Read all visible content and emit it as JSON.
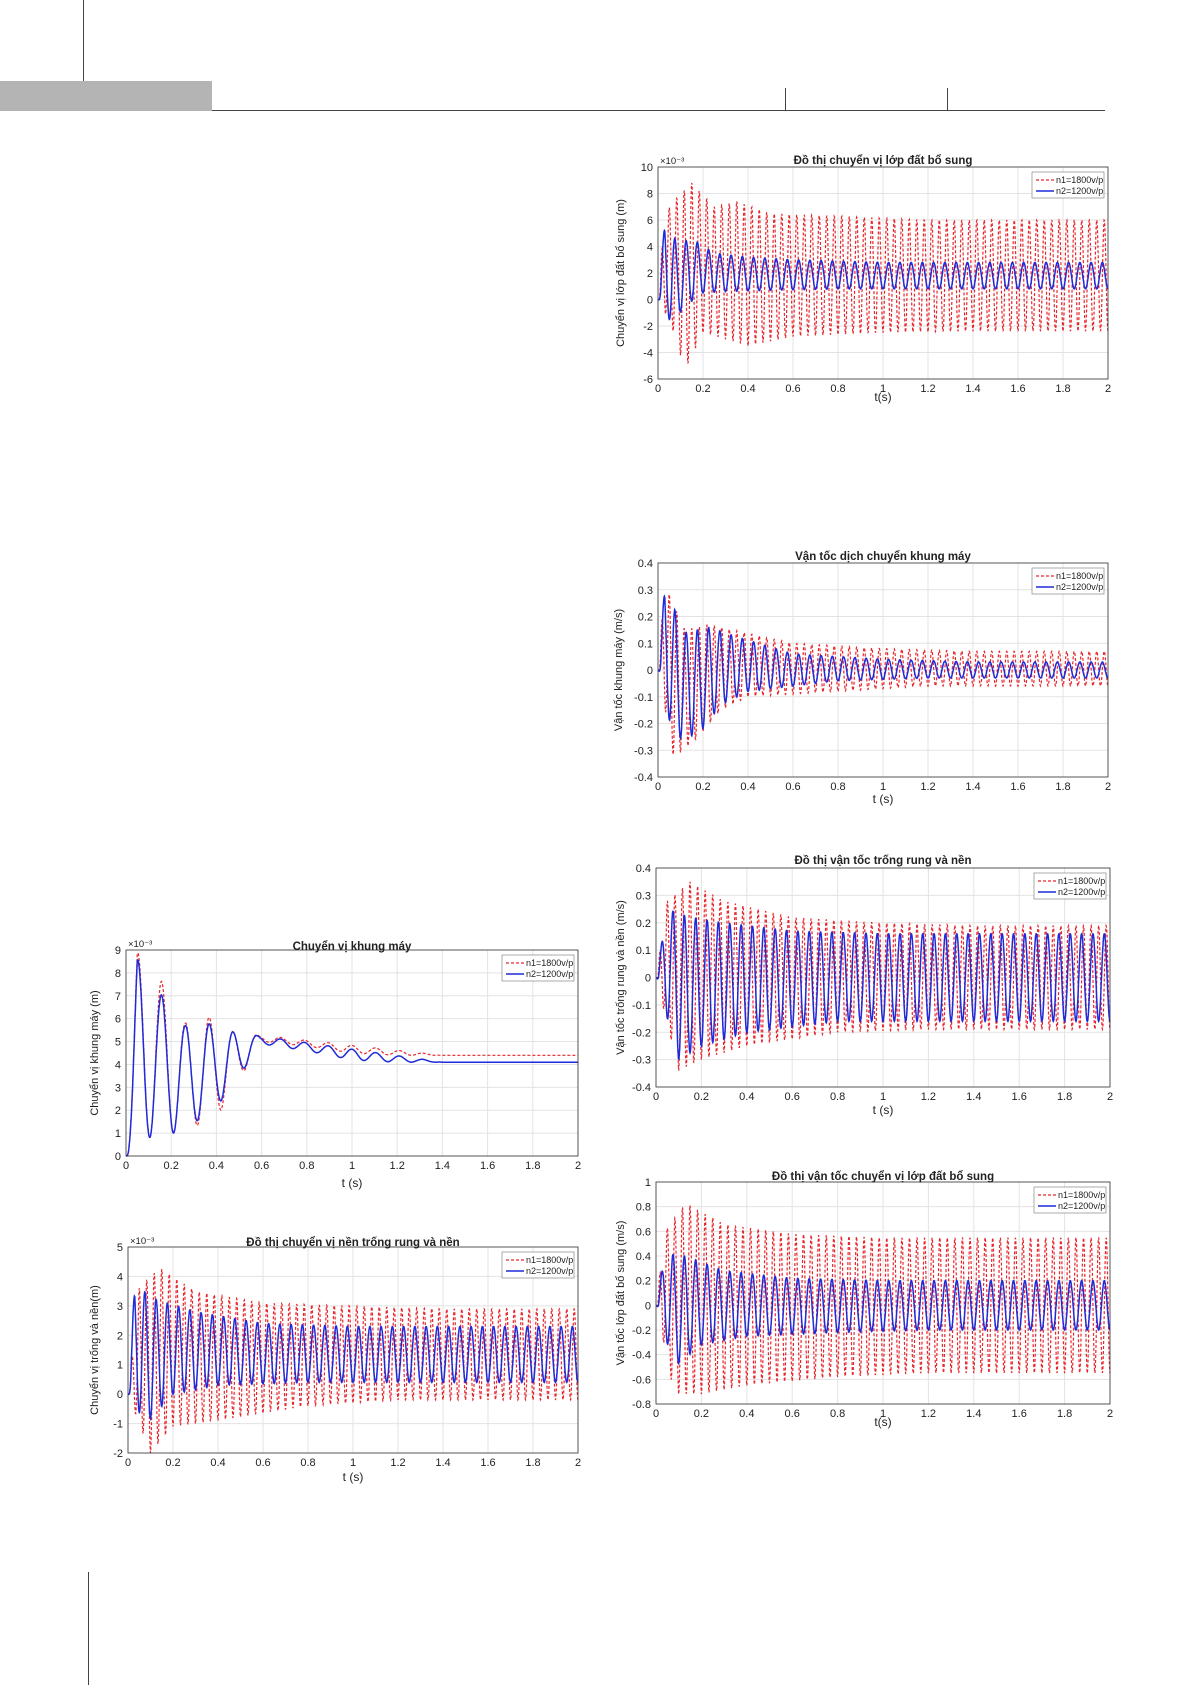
{
  "colors": {
    "n1": "#e8262d",
    "n2": "#1f2bd9",
    "grid": "#e3e3e3",
    "axis": "#333333"
  },
  "charts": {
    "c1": {
      "title": "Đồ thị chuyển vị lớp đất bổ sung",
      "xlabel": "t(s)",
      "ylabel": "Chuyển vị lớp đất bổ sung (m)",
      "exponent": "×10⁻³",
      "xticks": [
        "0",
        "0.2",
        "0.4",
        "0.6",
        "0.8",
        "1",
        "1.2",
        "1.4",
        "1.6",
        "1.8",
        "2"
      ],
      "yticks": [
        "10",
        "8",
        "6",
        "4",
        "2",
        "0",
        "-2",
        "-4",
        "-6"
      ],
      "legend": {
        "n1": "n1=1800v/p",
        "n2": "n2=1200v/p"
      }
    },
    "c2": {
      "title": "Vận tốc dịch chuyển khung máy",
      "xlabel": "t (s)",
      "ylabel": "Vận tốc khung máy (m/s)",
      "exponent": "",
      "xticks": [
        "0",
        "0.2",
        "0.4",
        "0.6",
        "0.8",
        "1",
        "1.2",
        "1.4",
        "1.6",
        "1.8",
        "2"
      ],
      "yticks": [
        "0.4",
        "0.3",
        "0.2",
        "0.1",
        "0",
        "-0.1",
        "-0.2",
        "-0.3",
        "-0.4"
      ],
      "legend": {
        "n1": "n1=1800v/p",
        "n2": "n2=1200v/p"
      }
    },
    "c3": {
      "title": "Đồ thị vận tốc trống rung và nền",
      "xlabel": "t (s)",
      "ylabel": "Vận tốc trống rung và nền (m/s)",
      "exponent": "",
      "xticks": [
        "0",
        "0.2",
        "0.4",
        "0.6",
        "0.8",
        "1",
        "1.2",
        "1.4",
        "1.6",
        "1.8",
        "2"
      ],
      "yticks": [
        "0.4",
        "0.3",
        "0.2",
        "0.1",
        "0",
        "-0.1",
        "-0.2",
        "-0.3",
        "-0.4"
      ],
      "legend": {
        "n1": "n1=1800v/p",
        "n2": "n2=1200v/p"
      }
    },
    "c4": {
      "title": "Chuyển vị khung máy",
      "xlabel": "t (s)",
      "ylabel": "Chuyển vị khung máy (m)",
      "exponent": "×10⁻³",
      "xticks": [
        "0",
        "0.2",
        "0.4",
        "0.6",
        "0.8",
        "1",
        "1.2",
        "1.4",
        "1.6",
        "1.8",
        "2"
      ],
      "yticks": [
        "9",
        "8",
        "7",
        "6",
        "5",
        "4",
        "3",
        "2",
        "1",
        "0"
      ],
      "legend": {
        "n1": "n1=1800v/p",
        "n2": "n2=1200v/p"
      }
    },
    "c5": {
      "title": "Đồ thị vận tốc chuyển vị lớp đất bổ sung",
      "xlabel": "t(s)",
      "ylabel": "Vận tốc lớp đất bổ sung (m/s)",
      "exponent": "",
      "xticks": [
        "0",
        "0.2",
        "0.4",
        "0.6",
        "0.8",
        "1",
        "1.2",
        "1.4",
        "1.6",
        "1.8",
        "2"
      ],
      "yticks": [
        "1",
        "0.8",
        "0.6",
        "0.4",
        "0.2",
        "0",
        "-0.2",
        "-0.4",
        "-0.6",
        "-0.8"
      ],
      "legend": {
        "n1": "n1=1800v/p",
        "n2": "n2=1200v/p"
      }
    },
    "c6": {
      "title": "Đồ thị chuyển vị nền trống rung và nền",
      "xlabel": "t (s)",
      "ylabel": "Chuyển vị trống và nền(m)",
      "exponent": "×10⁻³",
      "xticks": [
        "0",
        "0.2",
        "0.4",
        "0.6",
        "0.8",
        "1",
        "1.2",
        "1.4",
        "1.6",
        "1.8",
        "2"
      ],
      "yticks": [
        "5",
        "4",
        "3",
        "2",
        "1",
        "0",
        "-1",
        "-2"
      ],
      "legend": {
        "n1": "n1=1800v/p",
        "n2": "n2=1200v/p"
      }
    }
  },
  "chart_data": [
    {
      "id": "c1",
      "type": "line",
      "title": "Đồ thị chuyển vị lớp đất bổ sung",
      "xlabel": "t(s)",
      "ylabel": "Chuyển vị lớp đất bổ sung (m)",
      "y_multiplier": "10^-3",
      "xlim": [
        0,
        2
      ],
      "ylim": [
        -6,
        10
      ],
      "grid": true,
      "legend": "top-right",
      "series": [
        {
          "name": "n1=1800v/p",
          "style": "dashed",
          "x": [
            0,
            0.03,
            0.06,
            0.09,
            0.12,
            0.15,
            0.2,
            0.25,
            0.3,
            0.35,
            0.4,
            0.5,
            0.6,
            0.8,
            1,
            1.2,
            1.4,
            1.6,
            1.8,
            2
          ],
          "y": [
            0,
            6.5,
            -2,
            7.8,
            -5.3,
            8.8,
            -2.5,
            7,
            -3,
            7.4,
            -3.5,
            6.5,
            -2.8,
            6.3,
            -2.5,
            6,
            -2.4,
            6,
            -2.4,
            6
          ]
        },
        {
          "name": "n2=1200v/p",
          "style": "solid",
          "x": [
            0,
            0.03,
            0.06,
            0.09,
            0.12,
            0.15,
            0.2,
            0.25,
            0.3,
            0.4,
            0.5,
            0.6,
            0.8,
            1,
            1.2,
            1.4,
            1.6,
            1.8,
            2
          ],
          "y": [
            0,
            5.8,
            -1.8,
            4.2,
            -0.5,
            4.6,
            0.5,
            3.5,
            0.6,
            3.2,
            0.7,
            3,
            0.8,
            2.8,
            0.8,
            2.8,
            0.8,
            2.8,
            0.8
          ]
        }
      ]
    },
    {
      "id": "c2",
      "type": "line",
      "title": "Vận tốc dịch chuyển khung máy",
      "xlabel": "t (s)",
      "ylabel": "Vận tốc khung máy (m/s)",
      "xlim": [
        0,
        2
      ],
      "ylim": [
        -0.4,
        0.4
      ],
      "grid": true,
      "legend": "top-right",
      "series": [
        {
          "name": "n1=1800v/p",
          "style": "dashed",
          "x": [
            0,
            0.03,
            0.07,
            0.12,
            0.18,
            0.23,
            0.28,
            0.33,
            0.4,
            0.6,
            0.8,
            1,
            1.2,
            1.4,
            1.6,
            1.8,
            2
          ],
          "y": [
            0,
            0.32,
            -0.33,
            0.15,
            -0.25,
            0.17,
            -0.15,
            0.15,
            -0.1,
            0.1,
            -0.08,
            0.08,
            -0.06,
            0.07,
            -0.06,
            0.07,
            -0.06
          ]
        },
        {
          "name": "n2=1200v/p",
          "style": "solid",
          "x": [
            0,
            0.03,
            0.07,
            0.12,
            0.18,
            0.23,
            0.28,
            0.33,
            0.4,
            0.6,
            0.8,
            1,
            1.2,
            1.4,
            1.6,
            1.8,
            2
          ],
          "y": [
            0,
            0.31,
            -0.26,
            0.14,
            -0.24,
            0.16,
            -0.13,
            0.13,
            -0.08,
            0.06,
            -0.04,
            0.04,
            -0.03,
            0.03,
            -0.03,
            0.03,
            -0.03
          ]
        }
      ]
    },
    {
      "id": "c3",
      "type": "line",
      "title": "Đồ thị vận tốc trống rung và nền",
      "xlabel": "t (s)",
      "ylabel": "Vận tốc trống rung và nền (m/s)",
      "xlim": [
        0,
        2
      ],
      "ylim": [
        -0.4,
        0.4
      ],
      "grid": true,
      "legend": "top-right",
      "series": [
        {
          "name": "n1=1800v/p",
          "style": "dashed",
          "x": [
            0,
            0.05,
            0.1,
            0.15,
            0.2,
            0.3,
            0.4,
            0.6,
            0.8,
            1,
            1.2,
            1.4,
            1.6,
            1.8,
            2
          ],
          "y": [
            0,
            0.28,
            -0.34,
            0.35,
            -0.3,
            0.28,
            -0.25,
            0.22,
            -0.2,
            0.2,
            -0.19,
            0.19,
            -0.19,
            0.19,
            -0.19
          ]
        },
        {
          "name": "n2=1200v/p",
          "style": "solid",
          "x": [
            0,
            0.05,
            0.1,
            0.15,
            0.2,
            0.3,
            0.4,
            0.6,
            0.8,
            1,
            1.2,
            1.4,
            1.6,
            1.8,
            2
          ],
          "y": [
            0,
            0.25,
            -0.3,
            0.22,
            -0.25,
            0.2,
            -0.2,
            0.17,
            -0.16,
            0.16,
            -0.16,
            0.16,
            -0.16,
            0.16,
            -0.16
          ]
        }
      ]
    },
    {
      "id": "c4",
      "type": "line",
      "title": "Chuyển vị khung máy",
      "xlabel": "t (s)",
      "ylabel": "Chuyển vị khung máy (m)",
      "y_multiplier": "10^-3",
      "xlim": [
        0,
        2
      ],
      "ylim": [
        0,
        9
      ],
      "grid": true,
      "legend": "top-right",
      "series": [
        {
          "name": "n1=1800v/p",
          "style": "dashed",
          "x": [
            0,
            0.05,
            0.1,
            0.16,
            0.21,
            0.26,
            0.31,
            0.36,
            0.42,
            0.48,
            0.6,
            0.8,
            1,
            1.2,
            1.4,
            1.6,
            1.8,
            2
          ],
          "y": [
            0,
            8.9,
            0.8,
            7.6,
            1,
            5.8,
            1.3,
            6.1,
            2,
            5.4,
            5,
            4.8,
            4.5,
            4.4,
            4.4,
            4.4,
            4.4,
            4.4
          ]
        },
        {
          "name": "n2=1200v/p",
          "style": "solid",
          "x": [
            0,
            0.05,
            0.1,
            0.16,
            0.21,
            0.26,
            0.31,
            0.36,
            0.42,
            0.48,
            0.6,
            0.8,
            1,
            1.2,
            1.4,
            1.6,
            1.8,
            2
          ],
          "y": [
            0,
            8.6,
            0.8,
            7,
            1,
            5.7,
            1.5,
            5.8,
            2.4,
            5.4,
            4.9,
            4.6,
            4.2,
            4.1,
            4.1,
            4.1,
            4.1,
            4.1
          ]
        }
      ]
    },
    {
      "id": "c5",
      "type": "line",
      "title": "Đồ thị vận tốc chuyển vị lớp đất bổ sung",
      "xlabel": "t(s)",
      "ylabel": "Vận tốc lớp đất bổ sung (m/s)",
      "xlim": [
        0,
        2
      ],
      "ylim": [
        -0.8,
        1
      ],
      "grid": true,
      "legend": "top-right",
      "series": [
        {
          "name": "n1=1800v/p",
          "style": "dashed",
          "x": [
            0,
            0.04,
            0.08,
            0.13,
            0.2,
            0.3,
            0.4,
            0.6,
            0.8,
            1,
            1.2,
            1.4,
            1.6,
            1.8,
            2
          ],
          "y": [
            0,
            0.6,
            -0.72,
            0.83,
            -0.72,
            0.66,
            -0.65,
            0.58,
            -0.58,
            0.55,
            -0.55,
            0.55,
            -0.55,
            0.55,
            -0.55
          ]
        },
        {
          "name": "n2=1200v/p",
          "style": "solid",
          "x": [
            0,
            0.04,
            0.08,
            0.13,
            0.2,
            0.3,
            0.4,
            0.6,
            0.8,
            1,
            1.2,
            1.4,
            1.6,
            1.8,
            2
          ],
          "y": [
            0,
            0.42,
            -0.5,
            0.4,
            -0.32,
            0.28,
            -0.25,
            0.22,
            -0.22,
            0.2,
            -0.2,
            0.2,
            -0.2,
            0.2,
            -0.2
          ]
        }
      ]
    },
    {
      "id": "c6",
      "type": "line",
      "title": "Đồ thị chuyển vị nền trống rung và nền",
      "xlabel": "t (s)",
      "ylabel": "Chuyển vị trống và nền(m)",
      "y_multiplier": "10^-3",
      "xlim": [
        0,
        2
      ],
      "ylim": [
        -2,
        5
      ],
      "grid": true,
      "legend": "top-right",
      "series": [
        {
          "name": "n1=1800v/p",
          "style": "dashed",
          "x": [
            0,
            0.05,
            0.1,
            0.14,
            0.2,
            0.3,
            0.4,
            0.6,
            0.8,
            1,
            1.2,
            1.4,
            1.6,
            1.8,
            2
          ],
          "y": [
            0,
            3.6,
            -2,
            4.3,
            -1.1,
            3.5,
            -0.9,
            3.1,
            -0.4,
            3,
            -0.2,
            2.9,
            -0.2,
            2.9,
            -0.2
          ]
        },
        {
          "name": "n2=1200v/p",
          "style": "solid",
          "x": [
            0,
            0.03,
            0.08,
            0.13,
            0.2,
            0.3,
            0.4,
            0.6,
            0.8,
            1,
            1.2,
            1.4,
            1.6,
            1.8,
            2
          ],
          "y": [
            0,
            3.7,
            -1,
            3.2,
            0,
            2.8,
            0.3,
            2.4,
            0.4,
            2.3,
            0.4,
            2.3,
            0.4,
            2.3,
            0.4
          ]
        }
      ]
    }
  ]
}
